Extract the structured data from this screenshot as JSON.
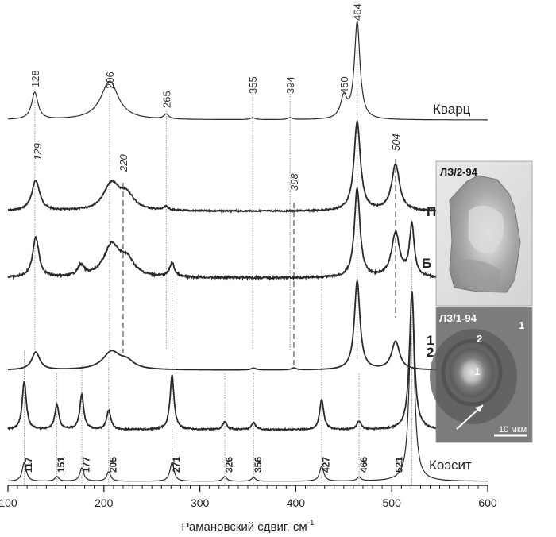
{
  "chart_data": {
    "type": "line",
    "title": "",
    "xlabel": "Рамановский сдвиг, см",
    "xlabel_sup": "-1",
    "ylabel": "",
    "xlim": [
      100,
      600
    ],
    "xticks": [
      100,
      200,
      300,
      400,
      500,
      600
    ],
    "grid": false,
    "legend": "none",
    "series": [
      {
        "name": "Кварц",
        "peaks": [
          {
            "x": 128,
            "h": 0.28,
            "w": 4
          },
          {
            "x": 206,
            "h": 0.4,
            "w": 11
          },
          {
            "x": 265,
            "h": 0.05,
            "w": 3
          },
          {
            "x": 355,
            "h": 0.02,
            "w": 3
          },
          {
            "x": 394,
            "h": 0.02,
            "w": 3
          },
          {
            "x": 450,
            "h": 0.22,
            "w": 4
          },
          {
            "x": 464,
            "h": 1.0,
            "w": 3.5
          }
        ]
      },
      {
        "name": "П",
        "peaks": [
          {
            "x": 129,
            "h": 0.34,
            "w": 5
          },
          {
            "x": 208,
            "h": 0.3,
            "w": 10
          },
          {
            "x": 224,
            "h": 0.16,
            "w": 9
          },
          {
            "x": 265,
            "h": 0.04,
            "w": 3
          },
          {
            "x": 464,
            "h": 1.0,
            "w": 4
          },
          {
            "x": 504,
            "h": 0.52,
            "w": 5
          }
        ]
      },
      {
        "name": "Б",
        "peaks": [
          {
            "x": 129,
            "h": 0.45,
            "w": 4
          },
          {
            "x": 176,
            "h": 0.12,
            "w": 4
          },
          {
            "x": 208,
            "h": 0.35,
            "w": 10
          },
          {
            "x": 224,
            "h": 0.18,
            "w": 9
          },
          {
            "x": 271,
            "h": 0.16,
            "w": 3
          },
          {
            "x": 464,
            "h": 1.0,
            "w": 3.5
          },
          {
            "x": 504,
            "h": 0.5,
            "w": 5
          },
          {
            "x": 521,
            "h": 0.58,
            "w": 3
          }
        ]
      },
      {
        "name": "1",
        "peaks": [
          {
            "x": 129,
            "h": 0.2,
            "w": 5
          },
          {
            "x": 208,
            "h": 0.2,
            "w": 11
          },
          {
            "x": 224,
            "h": 0.08,
            "w": 9
          },
          {
            "x": 356,
            "h": 0.02,
            "w": 3
          },
          {
            "x": 398,
            "h": 0.02,
            "w": 3
          },
          {
            "x": 464,
            "h": 1.0,
            "w": 3.5
          },
          {
            "x": 504,
            "h": 0.32,
            "w": 5
          }
        ]
      },
      {
        "name": "2",
        "peaks": [
          {
            "x": 117,
            "h": 0.35,
            "w": 2.5
          },
          {
            "x": 151,
            "h": 0.18,
            "w": 2.5
          },
          {
            "x": 177,
            "h": 0.25,
            "w": 2.5
          },
          {
            "x": 205,
            "h": 0.14,
            "w": 2.5
          },
          {
            "x": 271,
            "h": 0.39,
            "w": 2.5
          },
          {
            "x": 326,
            "h": 0.06,
            "w": 2.5
          },
          {
            "x": 356,
            "h": 0.05,
            "w": 2.5
          },
          {
            "x": 427,
            "h": 0.22,
            "w": 2.5
          },
          {
            "x": 466,
            "h": 0.06,
            "w": 2.5
          },
          {
            "x": 521,
            "h": 1.0,
            "w": 3
          }
        ]
      },
      {
        "name": "Коэсит",
        "peaks": [
          {
            "x": 117,
            "h": 0.1,
            "w": 2.5
          },
          {
            "x": 151,
            "h": 0.025,
            "w": 2.5
          },
          {
            "x": 177,
            "h": 0.07,
            "w": 2.5
          },
          {
            "x": 205,
            "h": 0.05,
            "w": 2.5
          },
          {
            "x": 271,
            "h": 0.1,
            "w": 2.5
          },
          {
            "x": 326,
            "h": 0.025,
            "w": 2.5
          },
          {
            "x": 356,
            "h": 0.02,
            "w": 2.5
          },
          {
            "x": 427,
            "h": 0.08,
            "w": 2.5
          },
          {
            "x": 466,
            "h": 0.02,
            "w": 2.5
          },
          {
            "x": 521,
            "h": 1.0,
            "w": 3
          }
        ]
      }
    ],
    "annotations": {
      "quartz_peaks": [
        "128",
        "206",
        "265",
        "355",
        "394",
        "450",
        "464"
      ],
      "p_peaks_italic": [
        "129",
        "220",
        "398",
        "504"
      ],
      "coesite_peaks": [
        "117",
        "151",
        "177",
        "205",
        "271",
        "326",
        "356",
        "427",
        "466",
        "521"
      ]
    },
    "insets": {
      "top_label": "ЛЗ/2-94",
      "bottom_label": "ЛЗ/1-94",
      "zone_1": "1",
      "zone_2": "2",
      "scale": "10 мкм"
    }
  }
}
